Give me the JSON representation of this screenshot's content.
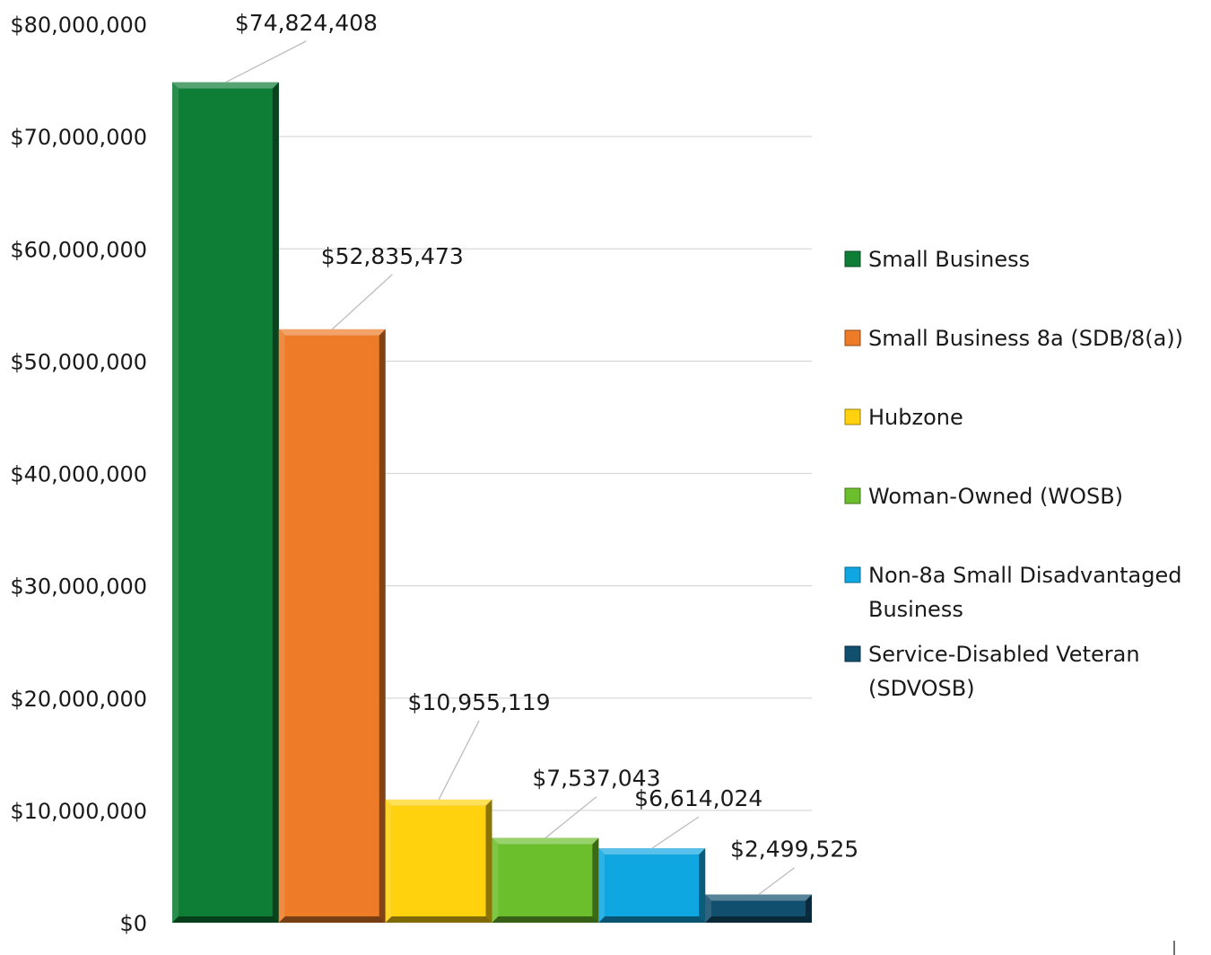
{
  "chart_data": {
    "type": "bar",
    "title": "",
    "xlabel": "",
    "ylabel": "",
    "ylim": [
      0,
      80000000
    ],
    "yticks": [
      {
        "value": 0,
        "label": "$0"
      },
      {
        "value": 10000000,
        "label": "$10,000,000"
      },
      {
        "value": 20000000,
        "label": "$20,000,000"
      },
      {
        "value": 30000000,
        "label": "$30,000,000"
      },
      {
        "value": 40000000,
        "label": "$40,000,000"
      },
      {
        "value": 50000000,
        "label": "$50,000,000"
      },
      {
        "value": 60000000,
        "label": "$60,000,000"
      },
      {
        "value": 70000000,
        "label": "$70,000,000"
      },
      {
        "value": 80000000,
        "label": "$80,000,000"
      }
    ],
    "grid": true,
    "legend_position": "right",
    "series": [
      {
        "name": "Small Business",
        "value": 74824408,
        "label": "$74,824,408",
        "color": "#0e7d36",
        "legend_lines": [
          "Small Business"
        ]
      },
      {
        "name": "Small Business 8a (SDB/8(a))",
        "value": 52835473,
        "label": "$52,835,473",
        "color": "#ee7b27",
        "legend_lines": [
          "Small Business 8a (SDB/8(a))"
        ]
      },
      {
        "name": "Hubzone",
        "value": 10955119,
        "label": "$10,955,119",
        "color": "#ffd20d",
        "legend_lines": [
          "Hubzone"
        ]
      },
      {
        "name": "Woman-Owned (WOSB)",
        "value": 7537043,
        "label": "$7,537,043",
        "color": "#6cbf2c",
        "legend_lines": [
          "Woman-Owned (WOSB)"
        ]
      },
      {
        "name": "Non-8a Small Disadvantaged Business",
        "value": 6614024,
        "label": "$6,614,024",
        "color": "#0fa7e2",
        "legend_lines": [
          "Non-8a Small Disadvantaged",
          "Business"
        ]
      },
      {
        "name": "Service-Disabled Veteran (SDVOSB)",
        "value": 2499525,
        "label": "$2,499,525",
        "color": "#114f6f",
        "legend_lines": [
          "Service-Disabled Veteran",
          "(SDVOSB)"
        ]
      }
    ]
  }
}
